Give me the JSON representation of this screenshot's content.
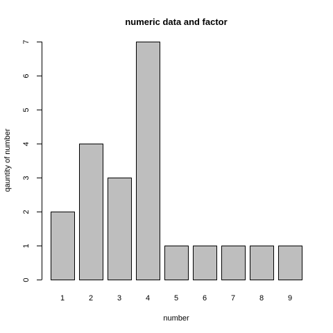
{
  "chart_data": {
    "type": "bar",
    "title": "numeric data and factor",
    "xlabel": "number",
    "ylabel": "qauntity of number",
    "categories": [
      "1",
      "2",
      "3",
      "4",
      "5",
      "6",
      "7",
      "8",
      "9"
    ],
    "values": [
      2,
      4,
      3,
      7,
      1,
      1,
      1,
      1,
      1
    ],
    "ylim": [
      0,
      7
    ],
    "yticks": [
      "0",
      "1",
      "2",
      "3",
      "4",
      "5",
      "6",
      "7"
    ],
    "grid": false,
    "bar_color": "#bebebe",
    "bar_border_color": "#000000"
  }
}
